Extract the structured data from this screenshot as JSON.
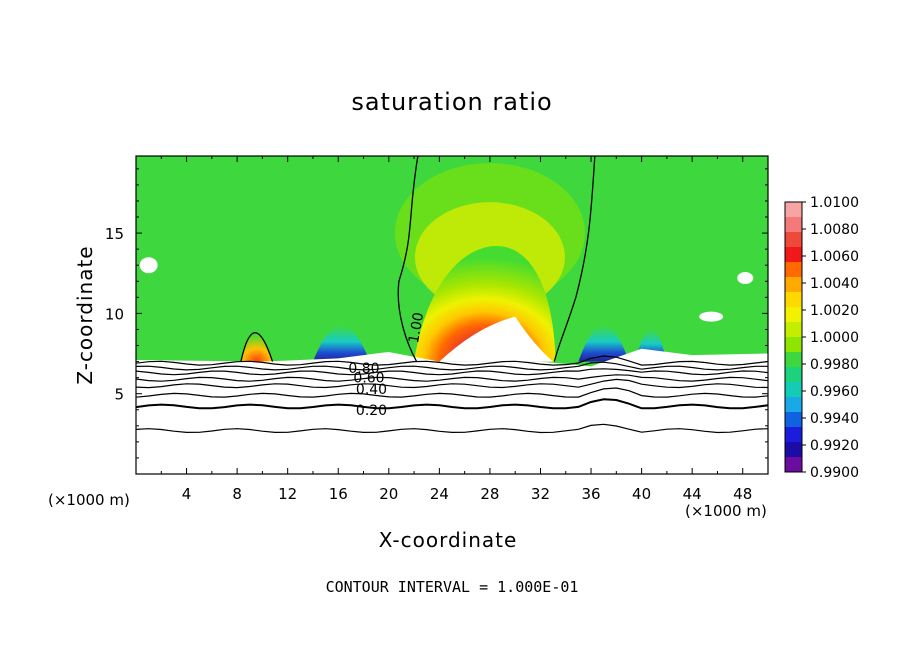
{
  "chart_data": {
    "type": "heatmap",
    "title": "saturation ratio",
    "xlabel": "X-coordinate",
    "ylabel": "Z-coordinate",
    "x_unit_label": "(×1000 m)",
    "y_unit_label": "(×1000 m)",
    "xlim": [
      0,
      50
    ],
    "ylim": [
      0,
      19.8
    ],
    "x_ticks": [
      "4",
      "8",
      "12",
      "16",
      "20",
      "24",
      "28",
      "32",
      "36",
      "40",
      "44",
      "48"
    ],
    "y_ticks": [
      "5",
      "10",
      "15"
    ],
    "colorbar": {
      "ticks": [
        "1.0100",
        "1.0080",
        "1.0060",
        "1.0040",
        "1.0020",
        "1.0000",
        "0.9980",
        "0.9960",
        "0.9940",
        "0.9920",
        "0.9900"
      ],
      "colors": [
        "#f7a4a4",
        "#f47a7a",
        "#ee4a3c",
        "#f01818",
        "#ff6a00",
        "#ffaa00",
        "#ffd800",
        "#f2f200",
        "#c4ee00",
        "#8ce600",
        "#3ed83e",
        "#1cd27e",
        "#14cbb3",
        "#1aa9e6",
        "#0f62e0",
        "#1c1cdc",
        "#1a0ca4",
        "#6a0ca0"
      ]
    },
    "contour_labels": [
      "0.80",
      "0.60",
      "0.40",
      "0.20",
      "1.00"
    ],
    "footer": "CONTOUR INTERVAL = 1.000E-01"
  }
}
